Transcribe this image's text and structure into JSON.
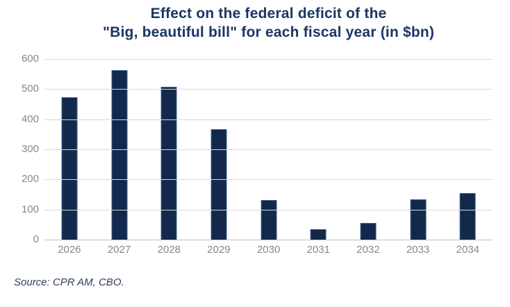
{
  "title": {
    "line1": "Effect on the federal deficit of the",
    "line2": "\"Big, beautiful bill\" for each fiscal year (in $bn)"
  },
  "source_note": "Source: CPR AM, CBO.",
  "colors": {
    "bar_fill": "#12294b",
    "bar_border": "#40608f",
    "title_text": "#1b3665",
    "tick_text": "#878787",
    "gridline": "#d9d9d9",
    "axis_line": "#bfbfbf",
    "source_text": "#2f3f5c",
    "background": "#ffffff"
  },
  "chart_data": {
    "type": "bar",
    "title": "Effect on the federal deficit of the \"Big, beautiful bill\" for each fiscal year (in $bn)",
    "categories": [
      "2026",
      "2027",
      "2028",
      "2029",
      "2030",
      "2031",
      "2032",
      "2033",
      "2034"
    ],
    "values": [
      474,
      563,
      507,
      366,
      131,
      35,
      56,
      133,
      155
    ],
    "xlabel": "",
    "ylabel": "",
    "ylim": [
      0,
      600
    ],
    "y_ticks": [
      0,
      100,
      200,
      300,
      400,
      500,
      600
    ],
    "grid": true,
    "legend": "none",
    "units": "$bn"
  }
}
